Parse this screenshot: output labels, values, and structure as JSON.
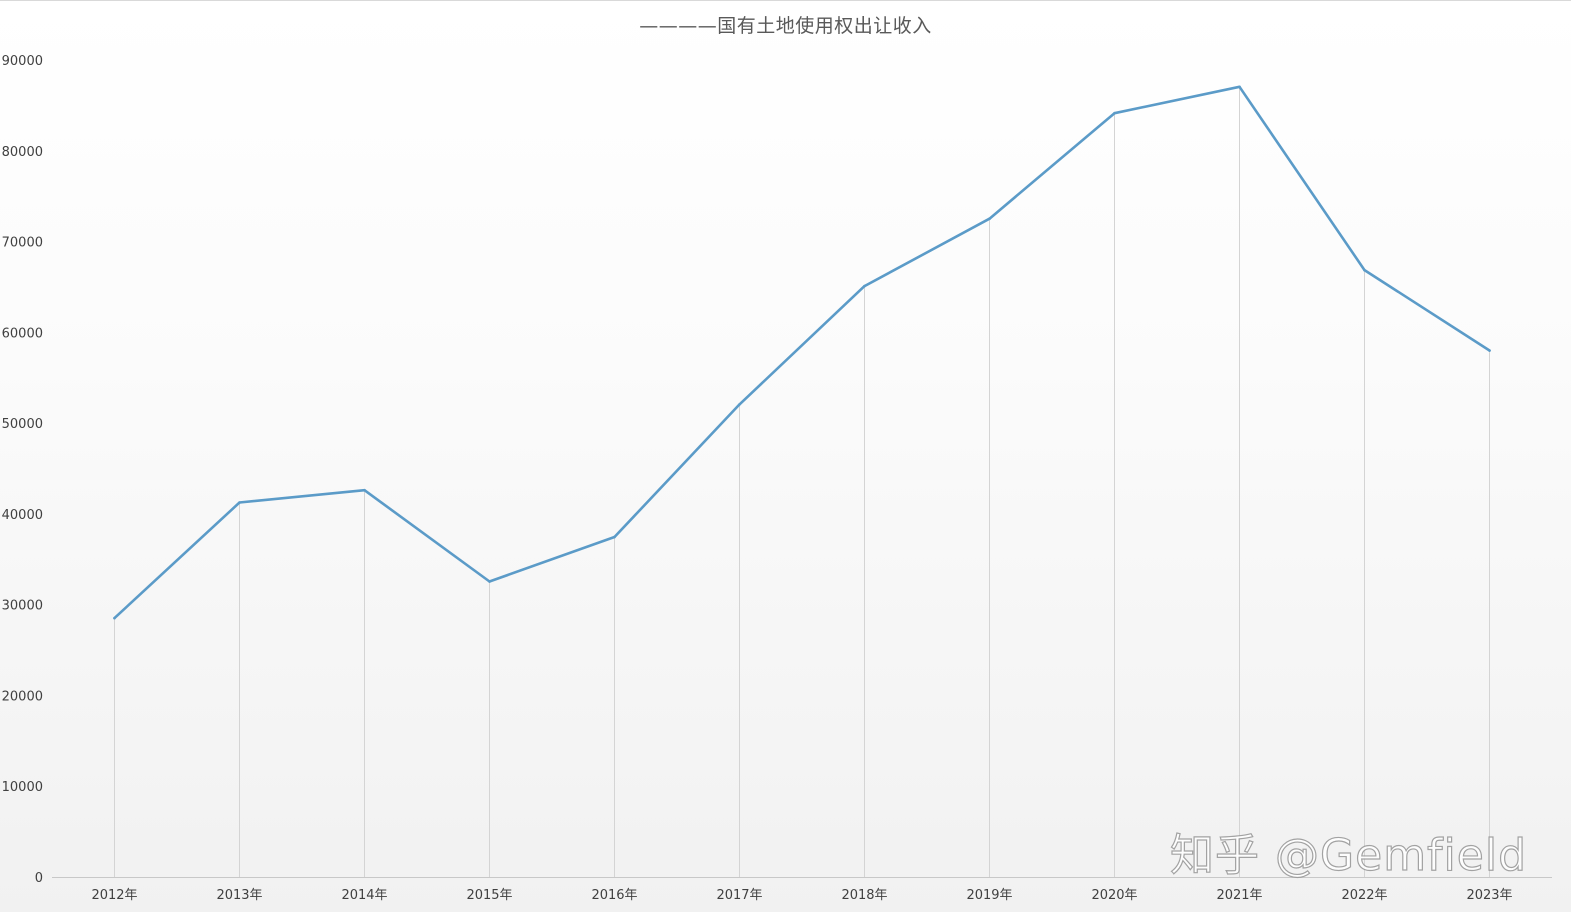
{
  "chart_data": {
    "type": "line",
    "title": "————国有土地使用权出让收入",
    "xlabel": "",
    "ylabel": "",
    "categories": [
      "2012年",
      "2013年",
      "2014年",
      "2015年",
      "2016年",
      "2017年",
      "2018年",
      "2019年",
      "2020年",
      "2021年",
      "2022年",
      "2023年"
    ],
    "series": [
      {
        "values": [
          28517,
          41250,
          42606,
          32547,
          37457,
          52059,
          65096,
          72517,
          84142,
          87051,
          66854,
          57996
        ]
      }
    ],
    "ylim": [
      0,
      90000
    ],
    "yticks": [
      "0",
      "10000",
      "20000",
      "30000",
      "40000",
      "50000",
      "60000",
      "70000",
      "80000",
      "90000"
    ],
    "grid": "vertical drop lines",
    "legend": "none",
    "colors": {
      "line": "#5b9bc8",
      "drop_line": "#d4d4d4",
      "axis": "#c8c8c8"
    }
  },
  "watermark": "知乎 @Gemfield"
}
